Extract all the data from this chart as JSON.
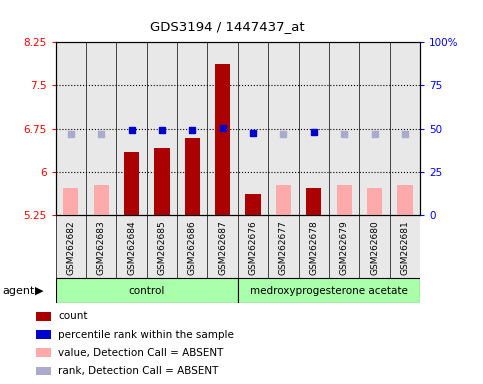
{
  "title": "GDS3194 / 1447437_at",
  "samples": [
    "GSM262682",
    "GSM262683",
    "GSM262684",
    "GSM262685",
    "GSM262686",
    "GSM262687",
    "GSM262676",
    "GSM262677",
    "GSM262678",
    "GSM262679",
    "GSM262680",
    "GSM262681"
  ],
  "count_values": [
    null,
    null,
    6.35,
    6.42,
    6.58,
    7.87,
    5.62,
    null,
    5.72,
    null,
    null,
    null
  ],
  "absent_values": [
    5.72,
    5.78,
    null,
    null,
    null,
    null,
    null,
    5.78,
    null,
    5.78,
    5.72,
    5.78
  ],
  "percentile_rank": [
    null,
    null,
    6.73,
    6.73,
    6.73,
    6.76,
    6.68,
    null,
    6.69,
    null,
    null,
    null
  ],
  "absent_rank": [
    6.65,
    6.65,
    null,
    null,
    null,
    null,
    null,
    6.65,
    null,
    6.65,
    6.65,
    6.65
  ],
  "ylim_left": [
    5.25,
    8.25
  ],
  "ylim_right": [
    0,
    100
  ],
  "yticks_left": [
    5.25,
    6.0,
    6.75,
    7.5,
    8.25
  ],
  "ytick_labels_left": [
    "5.25",
    "6",
    "6.75",
    "7.5",
    "8.25"
  ],
  "yticks_right": [
    0,
    25,
    50,
    75,
    100
  ],
  "ytick_labels_right": [
    "0",
    "25",
    "50",
    "75",
    "100%"
  ],
  "group1_label": "control",
  "group2_label": "medroxyprogesterone acetate",
  "group1_count": 6,
  "group2_count": 6,
  "bar_color_count": "#aa0000",
  "bar_color_absent": "#ffaaaa",
  "dot_color_rank": "#0000cc",
  "dot_color_absent_rank": "#aaaacc",
  "sample_bg_color": "#cccccc",
  "group_bg_color": "#aaffaa",
  "legend_labels": [
    "count",
    "percentile rank within the sample",
    "value, Detection Call = ABSENT",
    "rank, Detection Call = ABSENT"
  ],
  "legend_colors": [
    "#aa0000",
    "#0000cc",
    "#ffaaaa",
    "#aaaacc"
  ],
  "hgrid_lines": [
    6.0,
    6.75,
    7.5
  ],
  "bar_width": 0.5
}
